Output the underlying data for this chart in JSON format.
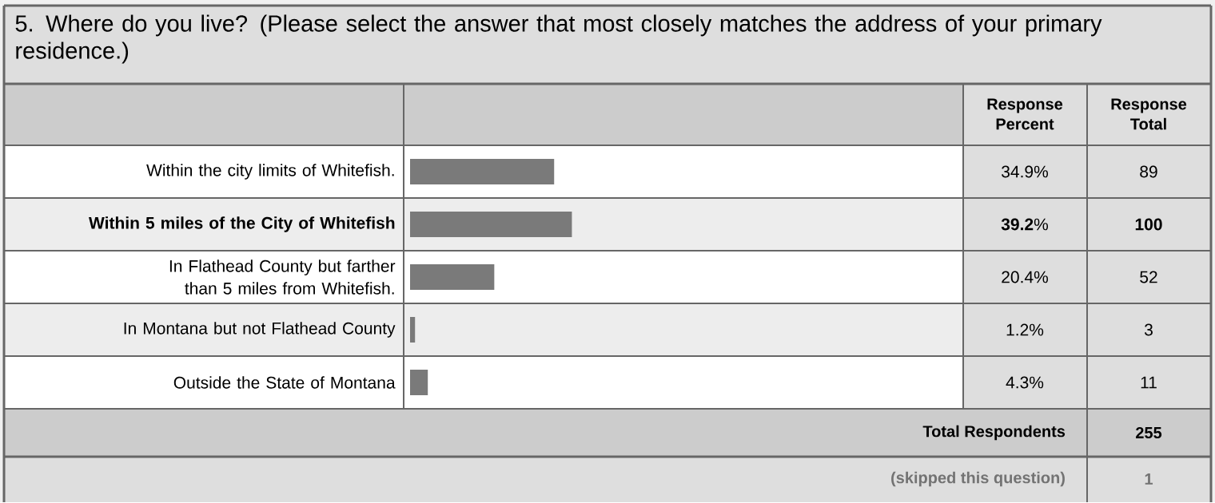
{
  "chart_data": {
    "type": "bar",
    "orientation": "horizontal",
    "title": "5. Where do you live? (Please select the answer that most closely matches the address of your primary residence.)",
    "categories": [
      "Within the city limits of Whitefish.",
      "**Within 5 miles of the City of Whitefish**",
      "In Flathead County but farther than 5 miles from Whitefish.",
      "In Montana but not Flathead County",
      "Outside the State of Montana"
    ],
    "values": [
      34.9,
      39.2,
      20.4,
      1.2,
      4.3
    ],
    "value_labels": [
      "34.9%",
      "**39.2**%",
      "20.4%",
      "1.2%",
      "4.3%"
    ],
    "color": "#7a7a7a",
    "xlim": [
      0,
      134
    ],
    "annotations": [
      "Response Percent",
      "Response Total",
      "89",
      "**100**",
      "52",
      "3",
      "11",
      "Total Respondents",
      "255",
      "(skipped this question)",
      "1"
    ]
  }
}
